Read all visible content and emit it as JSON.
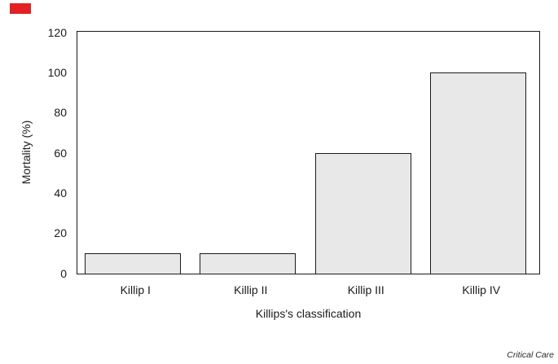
{
  "figure": {
    "credit": "Critical Care",
    "marker_color": "#e32124"
  },
  "chart_data": {
    "type": "bar",
    "categories": [
      "Killip I",
      "Killip II",
      "Killip III",
      "Killip IV"
    ],
    "values": [
      10,
      10,
      60,
      100
    ],
    "title": "",
    "xlabel": "Killips's classification",
    "ylabel": "Mortality (%)",
    "ylim": [
      0,
      120
    ],
    "yticks": [
      0,
      20,
      40,
      60,
      80,
      100,
      120
    ],
    "bar_fill": "#e8e8e8",
    "bar_border": "#1a1a1a",
    "grid": false,
    "legend": false
  }
}
